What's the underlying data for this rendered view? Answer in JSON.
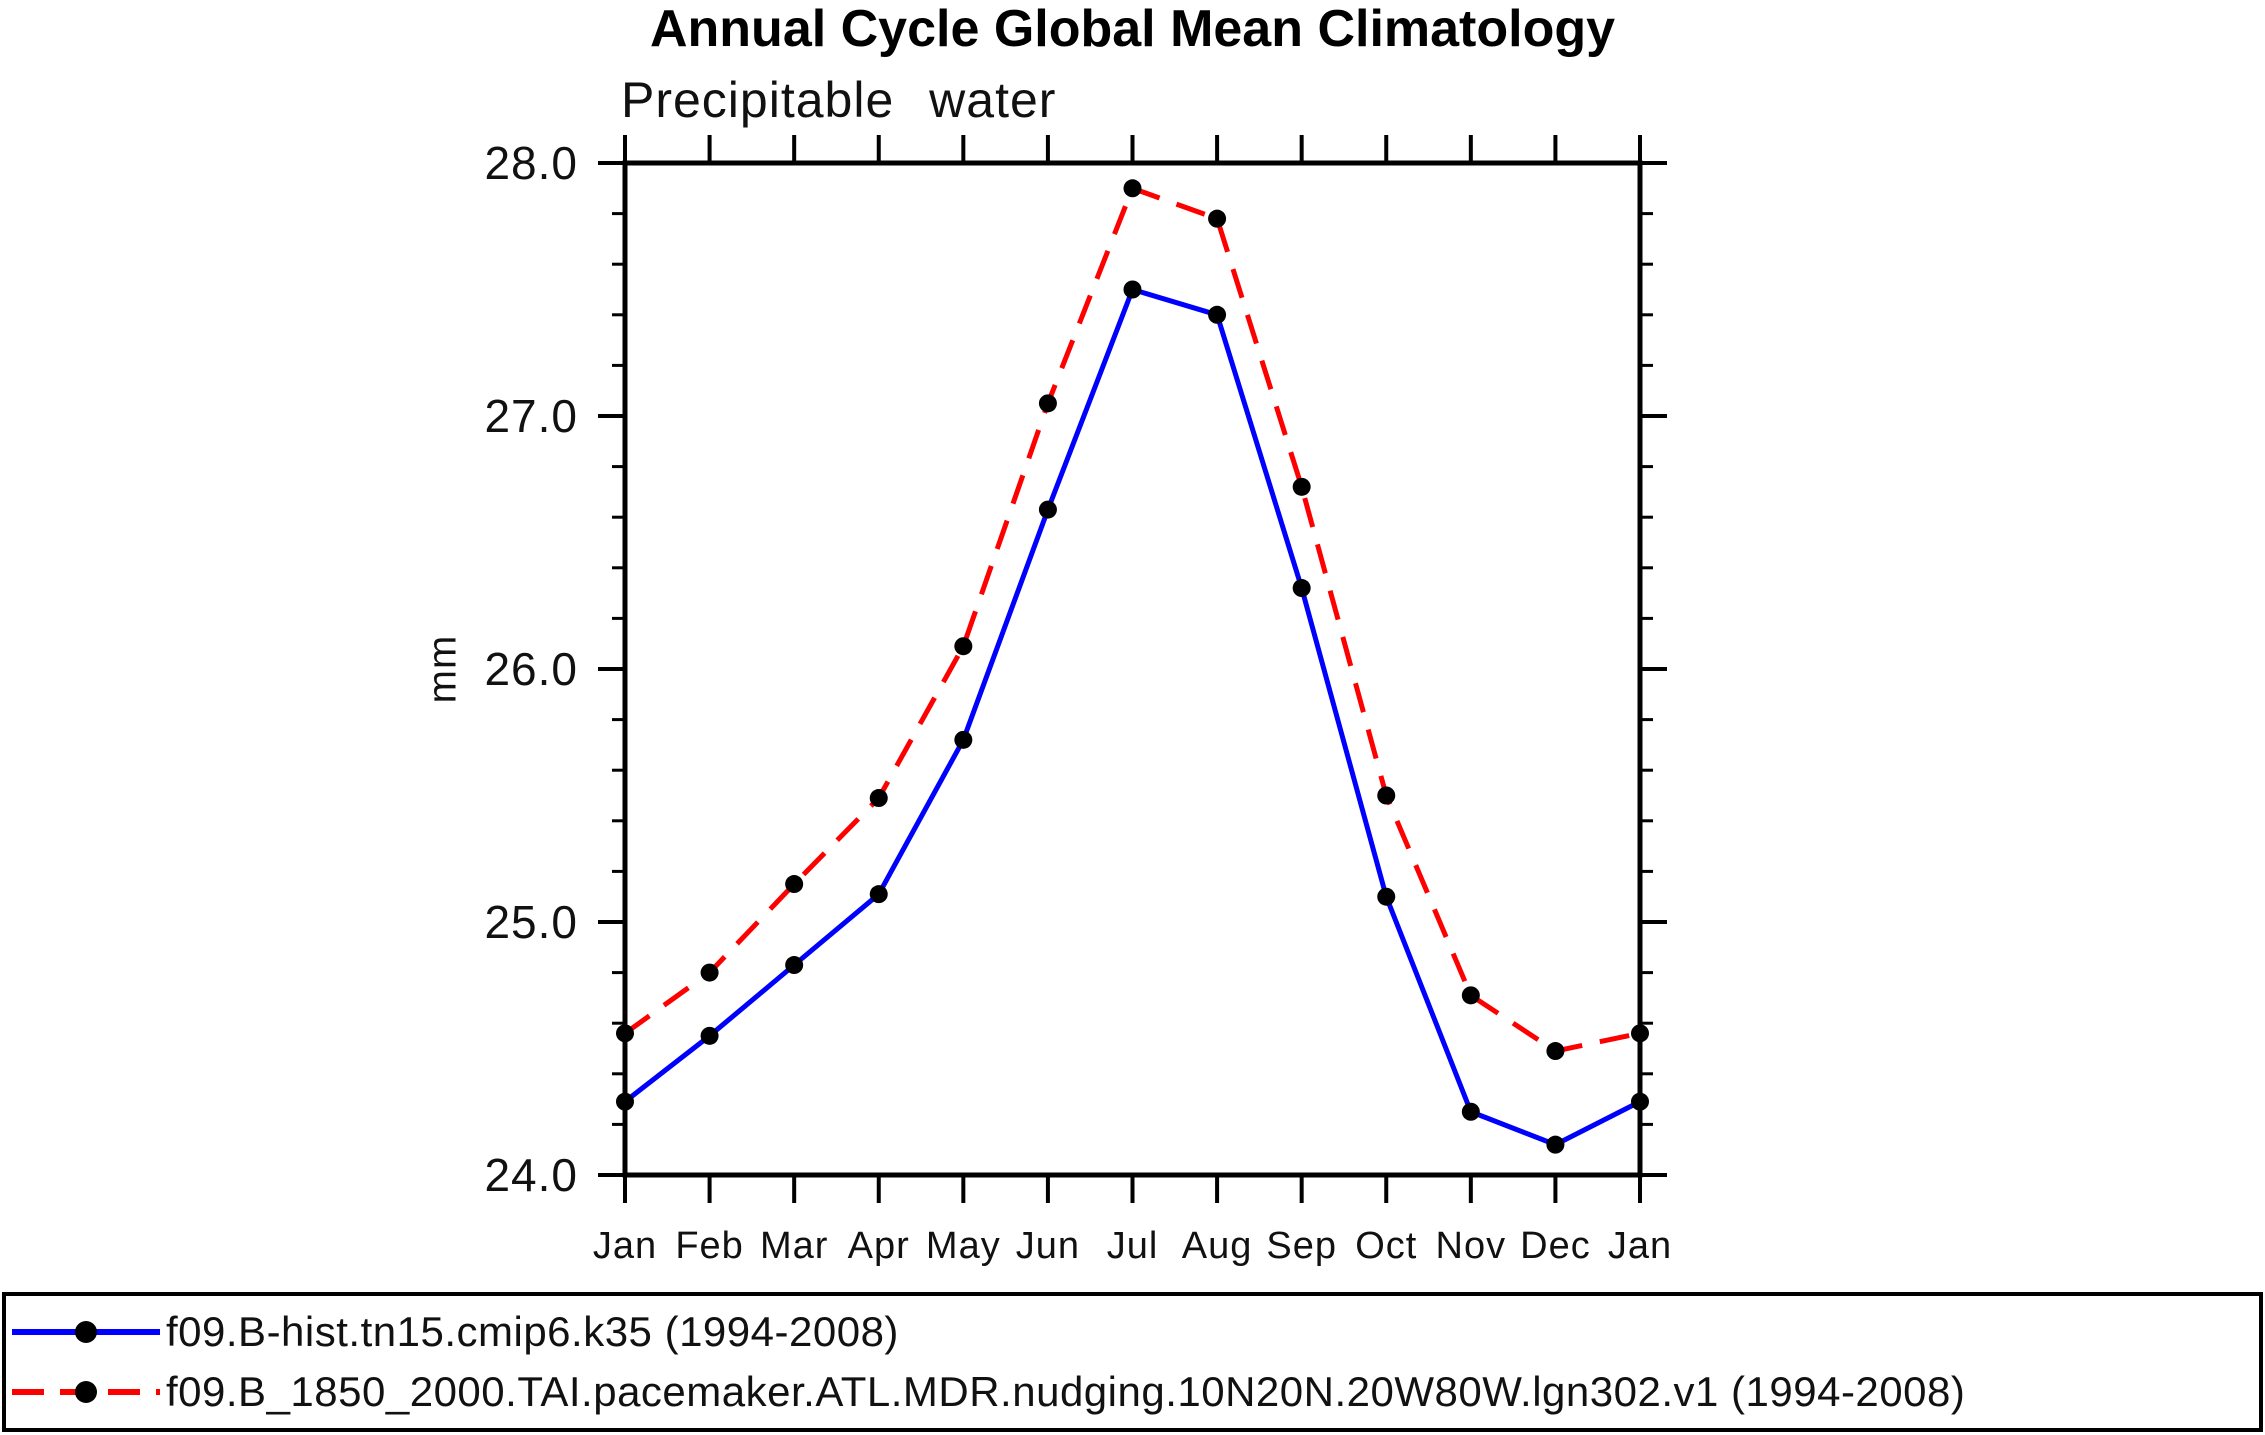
{
  "chart_data": {
    "type": "line",
    "title": "Annual Cycle Global Mean Climatology",
    "subtitle": "Precipitable water",
    "ylabel": "mm",
    "xlabel": "",
    "categories": [
      "Jan",
      "Feb",
      "Mar",
      "Apr",
      "May",
      "Jun",
      "Jul",
      "Aug",
      "Sep",
      "Oct",
      "Nov",
      "Dec",
      "Jan"
    ],
    "ylim": [
      24.0,
      28.0
    ],
    "yticks": [
      24.0,
      25.0,
      26.0,
      27.0,
      28.0
    ],
    "ytick_labels": [
      "24.0",
      "25.0",
      "26.0",
      "27.0",
      "28.0"
    ],
    "yminor_step": 0.2,
    "grid": false,
    "frame": "box-with-outward-ticks",
    "legend_position": "bottom-full-width-box",
    "axis_color": "#000000",
    "series": [
      {
        "name": "f09.B-hist.tn15.cmip6.k35 (1994-2008)",
        "color": "#0000ff",
        "line_style": "solid",
        "marker": "filled-circle",
        "marker_color": "#000000",
        "values": [
          24.29,
          24.55,
          24.83,
          25.11,
          25.72,
          26.63,
          27.5,
          27.4,
          26.32,
          25.1,
          24.25,
          24.12,
          24.29
        ]
      },
      {
        "name": "f09.B_1850_2000.TAI.pacemaker.ATL.MDR.nudging.10N20N.20W80W.lgn302.v1 (1994-2008)",
        "color": "#ff0000",
        "line_style": "dashed",
        "marker": "filled-circle",
        "marker_color": "#000000",
        "values": [
          24.56,
          24.8,
          25.15,
          25.49,
          26.09,
          27.05,
          27.9,
          27.78,
          26.72,
          25.5,
          24.71,
          24.49,
          24.56
        ]
      }
    ]
  }
}
